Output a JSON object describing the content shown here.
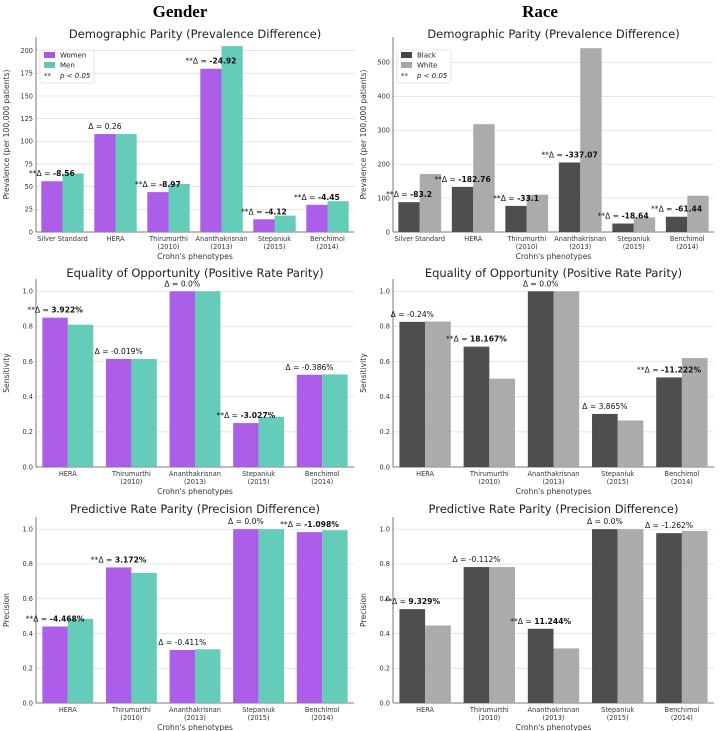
{
  "column_titles": [
    "Gender",
    "Race"
  ],
  "chart_data": [
    {
      "type": "bar",
      "column": "Gender",
      "title": "Demographic Parity (Prevalence Difference)",
      "xlabel": "Crohn's phenotypes",
      "ylabel": "Prevalence (per 100,000 patients)",
      "ylim": [
        0,
        215
      ],
      "yticks": [
        0,
        25,
        50,
        75,
        100,
        125,
        150,
        175,
        200
      ],
      "categories": [
        [
          "Silver Standard"
        ],
        [
          "HERA"
        ],
        [
          "Thirumurthi",
          "(2010)"
        ],
        [
          "Ananthakrisnan",
          "(2013)"
        ],
        [
          "Stepaniuk",
          "(2015)"
        ],
        [
          "Benchimol",
          "(2014)"
        ]
      ],
      "series": [
        {
          "name": "Women",
          "color": "#a855e8",
          "values": [
            56,
            108,
            44,
            180,
            14,
            30
          ]
        },
        {
          "name": "Men",
          "color": "#5ec9b6",
          "values": [
            64.5,
            108,
            53,
            205,
            18,
            34
          ]
        }
      ],
      "annotations": [
        {
          "sig": "**",
          "text": "Δ = ",
          "value": "-8.56",
          "bold": true
        },
        {
          "sig": "",
          "text": "Δ = ",
          "value": "0.26",
          "bold": false
        },
        {
          "sig": "**",
          "text": "Δ = ",
          "value": "-8.97",
          "bold": true
        },
        {
          "sig": "**",
          "text": "Δ = ",
          "value": "-24.92",
          "bold": true
        },
        {
          "sig": "**",
          "text": "Δ = ",
          "value": "-4.12",
          "bold": true
        },
        {
          "sig": "**",
          "text": "Δ = ",
          "value": "-4.45",
          "bold": true
        }
      ],
      "legend": {
        "entries": [
          "Women",
          "Men"
        ],
        "sig_symbol": "**",
        "sig_text": "p < 0.05",
        "position": "top-left"
      }
    },
    {
      "type": "bar",
      "column": "Race",
      "title": "Demographic Parity (Prevalence Difference)",
      "xlabel": "Crohn's phenotypes",
      "ylabel": "Prevalence (per 100,000 patients)",
      "ylim": [
        0,
        575
      ],
      "yticks": [
        0,
        100,
        200,
        300,
        400,
        500
      ],
      "categories": [
        [
          "Silver Standard"
        ],
        [
          "HERA"
        ],
        [
          "Thirumurthi",
          "(2010)"
        ],
        [
          "Ananthakrisnan",
          "(2013)"
        ],
        [
          "Stepaniuk",
          "(2015)"
        ],
        [
          "Benchimol",
          "(2014)"
        ]
      ],
      "series": [
        {
          "name": "Black",
          "color": "#454545",
          "values": [
            88,
            133,
            77,
            205,
            25,
            45
          ]
        },
        {
          "name": "White",
          "color": "#a6a6a6",
          "values": [
            171,
            318,
            110,
            542,
            43,
            107
          ]
        }
      ],
      "annotations": [
        {
          "sig": "**",
          "text": "Δ = ",
          "value": "-83.2",
          "bold": true
        },
        {
          "sig": "**",
          "text": "Δ = ",
          "value": "-182.76",
          "bold": true
        },
        {
          "sig": "**",
          "text": "Δ = ",
          "value": "-33.1",
          "bold": true
        },
        {
          "sig": "**",
          "text": "Δ = ",
          "value": "-337.07",
          "bold": true
        },
        {
          "sig": "**",
          "text": "Δ = ",
          "value": "-18.64",
          "bold": true
        },
        {
          "sig": "**",
          "text": "Δ = ",
          "value": "-61.44",
          "bold": true
        }
      ],
      "legend": {
        "entries": [
          "Black",
          "White"
        ],
        "sig_symbol": "**",
        "sig_text": "p < 0.05",
        "position": "top-left"
      }
    },
    {
      "type": "bar",
      "column": "Gender",
      "title": "Equality of Opportunity (Positive Rate Parity)",
      "xlabel": "Crohn's phenotypes",
      "ylabel": "Sensitivity",
      "ylim": [
        0,
        1.07
      ],
      "yticks": [
        0.0,
        0.2,
        0.4,
        0.6,
        0.8,
        1.0
      ],
      "categories": [
        [
          "HERA"
        ],
        [
          "Thirumurthi",
          "(2010)"
        ],
        [
          "Ananthakrisnan",
          "(2013)"
        ],
        [
          "Stepaniuk",
          "(2015)"
        ],
        [
          "Benchimol",
          "(2014)"
        ]
      ],
      "series": [
        {
          "name": "Women",
          "color": "#a855e8",
          "values": [
            0.85,
            0.615,
            1.0,
            0.25,
            0.525
          ]
        },
        {
          "name": "Men",
          "color": "#5ec9b6",
          "values": [
            0.81,
            0.615,
            1.0,
            0.285,
            0.527
          ]
        }
      ],
      "annotations": [
        {
          "sig": "**",
          "text": "Δ = ",
          "value": "3.922%",
          "bold": true
        },
        {
          "sig": "",
          "text": "Δ = ",
          "value": "-0.019%",
          "bold": false
        },
        {
          "sig": "",
          "text": "Δ = ",
          "value": "0.0%",
          "bold": false
        },
        {
          "sig": "**",
          "text": "Δ = ",
          "value": "-3.027%",
          "bold": true
        },
        {
          "sig": "",
          "text": "Δ = ",
          "value": "-0.386%",
          "bold": false
        }
      ]
    },
    {
      "type": "bar",
      "column": "Race",
      "title": "Equality of Opportunity (Positive Rate Parity)",
      "xlabel": "Crohn's phenotypes",
      "ylabel": "Sensitivity",
      "ylim": [
        0,
        1.07
      ],
      "yticks": [
        0.0,
        0.2,
        0.4,
        0.6,
        0.8,
        1.0
      ],
      "categories": [
        [
          "HERA"
        ],
        [
          "Thirumurthi",
          "(2010)"
        ],
        [
          "Ananthakrisnan",
          "(2013)"
        ],
        [
          "Stepaniuk",
          "(2015)"
        ],
        [
          "Benchimol",
          "(2014)"
        ]
      ],
      "series": [
        {
          "name": "Black",
          "color": "#454545",
          "values": [
            0.826,
            0.685,
            1.0,
            0.302,
            0.51
          ]
        },
        {
          "name": "White",
          "color": "#a6a6a6",
          "values": [
            0.828,
            0.503,
            1.0,
            0.265,
            0.62
          ]
        }
      ],
      "annotations": [
        {
          "sig": "",
          "text": "Δ = ",
          "value": "-0.24%",
          "bold": false
        },
        {
          "sig": "**",
          "text": "Δ = ",
          "value": "18.167%",
          "bold": true
        },
        {
          "sig": "",
          "text": "Δ = ",
          "value": "0.0%",
          "bold": false
        },
        {
          "sig": "",
          "text": "Δ = ",
          "value": "3.865%",
          "bold": false
        },
        {
          "sig": "**",
          "text": "Δ = ",
          "value": "-11.222%",
          "bold": true
        }
      ]
    },
    {
      "type": "bar",
      "column": "Gender",
      "title": "Predictive Rate Parity (Precision Difference)",
      "xlabel": "Crohn's phenotypes",
      "ylabel": "Precision",
      "ylim": [
        0,
        1.07
      ],
      "yticks": [
        0.0,
        0.2,
        0.4,
        0.6,
        0.8,
        1.0
      ],
      "categories": [
        [
          "HERA"
        ],
        [
          "Thirumurthi",
          "(2010)"
        ],
        [
          "Ananthakrisnan",
          "(2013)"
        ],
        [
          "Stepaniuk",
          "(2015)"
        ],
        [
          "Benchimol",
          "(2014)"
        ]
      ],
      "series": [
        {
          "name": "Women",
          "color": "#a855e8",
          "values": [
            0.44,
            0.78,
            0.305,
            1.0,
            0.983
          ]
        },
        {
          "name": "Men",
          "color": "#5ec9b6",
          "values": [
            0.484,
            0.748,
            0.309,
            1.0,
            0.994
          ]
        }
      ],
      "annotations": [
        {
          "sig": "**",
          "text": "Δ = ",
          "value": "-4.468%",
          "bold": true
        },
        {
          "sig": "**",
          "text": "Δ = ",
          "value": "3.172%",
          "bold": true
        },
        {
          "sig": "",
          "text": "Δ = ",
          "value": "-0.411%",
          "bold": false
        },
        {
          "sig": "",
          "text": "Δ = ",
          "value": "0.0%",
          "bold": false
        },
        {
          "sig": "**",
          "text": "Δ = ",
          "value": "-1.098%",
          "bold": true
        }
      ]
    },
    {
      "type": "bar",
      "column": "Race",
      "title": "Predictive Rate Parity (Precision Difference)",
      "xlabel": "Crohn's phenotypes",
      "ylabel": "Precision",
      "ylim": [
        0,
        1.07
      ],
      "yticks": [
        0.0,
        0.2,
        0.4,
        0.6,
        0.8,
        1.0
      ],
      "categories": [
        [
          "HERA"
        ],
        [
          "Thirumurthi",
          "(2010)"
        ],
        [
          "Ananthakrisnan",
          "(2013)"
        ],
        [
          "Stepaniuk",
          "(2015)"
        ],
        [
          "Benchimol",
          "(2014)"
        ]
      ],
      "series": [
        {
          "name": "Black",
          "color": "#454545",
          "values": [
            0.54,
            0.782,
            0.427,
            1.0,
            0.977
          ]
        },
        {
          "name": "White",
          "color": "#a6a6a6",
          "values": [
            0.446,
            0.782,
            0.314,
            1.0,
            0.99
          ]
        }
      ],
      "annotations": [
        {
          "sig": "**",
          "text": "Δ = ",
          "value": "9.329%",
          "bold": true
        },
        {
          "sig": "",
          "text": "Δ = ",
          "value": "-0.112%",
          "bold": false
        },
        {
          "sig": "**",
          "text": "Δ = ",
          "value": "11.244%",
          "bold": true
        },
        {
          "sig": "",
          "text": "Δ = ",
          "value": "0.0%",
          "bold": false
        },
        {
          "sig": "",
          "text": "Δ = ",
          "value": "-1.262%",
          "bold": false
        }
      ]
    }
  ]
}
